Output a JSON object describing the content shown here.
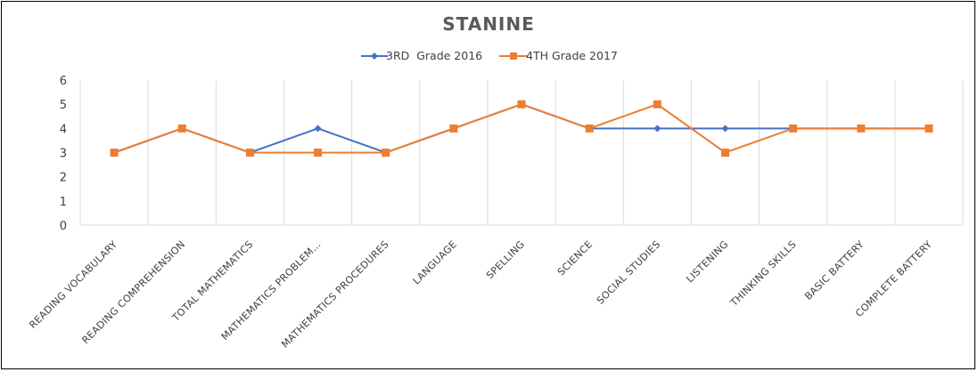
{
  "chart_data": {
    "type": "line",
    "title": "STANINE",
    "xlabel": "",
    "ylabel": "",
    "ylim": [
      0,
      6
    ],
    "yticks": [
      0,
      1,
      2,
      3,
      4,
      5,
      6
    ],
    "legend_position": "top-center",
    "grid": "vertical category separators",
    "categories": [
      "READING VOCABULARY",
      "READING COMPREHENSION",
      "TOTAL MATHEMATICS",
      "MATHEMATICS PROBLEM…",
      "MATHEMATICS PROCEDURES",
      "LANGUAGE",
      "SPELLING",
      "SCIENCE",
      "SOCIAL STUDIES",
      "LISTENING",
      "THINKING SKILLS",
      "BASIC BATTERY",
      "COMPLETE BATTERY"
    ],
    "series": [
      {
        "name": "3RD  Grade 2016",
        "color": "#4472C4",
        "marker": "diamond",
        "values": [
          3,
          4,
          3,
          4,
          3,
          4,
          5,
          4,
          4,
          4,
          4,
          4,
          4
        ]
      },
      {
        "name": "4TH Grade 2017",
        "color": "#ED7D31",
        "marker": "square",
        "values": [
          3,
          4,
          3,
          3,
          3,
          4,
          5,
          4,
          5,
          3,
          4,
          4,
          4
        ]
      }
    ]
  }
}
